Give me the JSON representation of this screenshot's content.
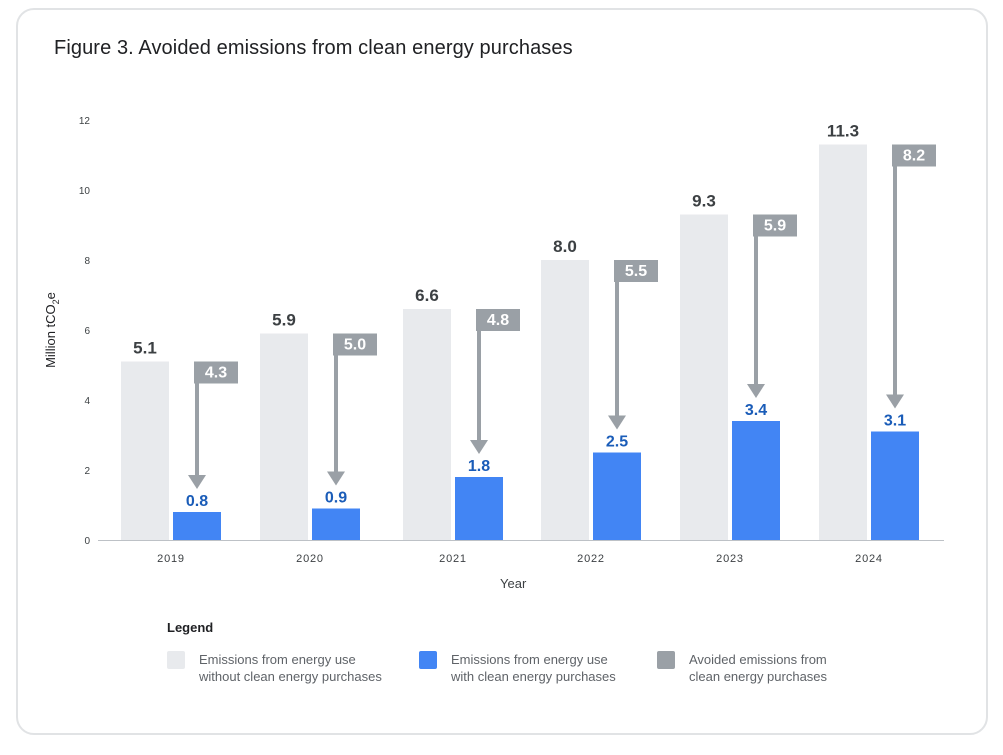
{
  "title": "Figure 3. Avoided emissions from clean energy purchases",
  "colors": {
    "without": "#e8eaed",
    "with": "#4285f4",
    "avoided": "#9aa0a6",
    "with_label": "#1a5cb8",
    "without_label": "#3c4043"
  },
  "chart_data": {
    "type": "bar",
    "title": "Figure 3. Avoided emissions from clean energy purchases",
    "xlabel": "Year",
    "ylabel_main": "Million tCO",
    "ylabel_sub": "2",
    "ylabel_tail": "e",
    "ylim": [
      0,
      12
    ],
    "yticks": [
      "0",
      "2",
      "4",
      "6",
      "8",
      "10",
      "12"
    ],
    "categories": [
      "2019",
      "2020",
      "2021",
      "2022",
      "2023",
      "2024"
    ],
    "series": [
      {
        "name": "Emissions from energy use without clean energy purchases",
        "values": [
          5.1,
          5.9,
          6.6,
          8.0,
          9.3,
          11.3
        ],
        "labels": [
          "5.1",
          "5.9",
          "6.6",
          "8.0",
          "9.3",
          "11.3"
        ]
      },
      {
        "name": "Emissions from energy use with clean energy purchases",
        "values": [
          0.8,
          0.9,
          1.8,
          2.5,
          3.4,
          3.1
        ],
        "labels": [
          "0.8",
          "0.9",
          "1.8",
          "2.5",
          "3.4",
          "3.1"
        ]
      },
      {
        "name": "Avoided emissions from clean energy purchases",
        "values": [
          4.3,
          5.0,
          4.8,
          5.5,
          5.9,
          8.2
        ],
        "labels": [
          "4.3",
          "5.0",
          "4.8",
          "5.5",
          "5.9",
          "8.2"
        ]
      }
    ],
    "grid": false,
    "legend_position": "bottom"
  },
  "legend": {
    "title": "Legend",
    "items": [
      {
        "label": "Emissions from energy use\nwithout clean energy purchases",
        "color": "#e8eaed"
      },
      {
        "label": "Emissions from energy use\nwith clean energy purchases",
        "color": "#4285f4"
      },
      {
        "label": "Avoided emissions from\nclean energy purchases",
        "color": "#9aa0a6"
      }
    ]
  }
}
